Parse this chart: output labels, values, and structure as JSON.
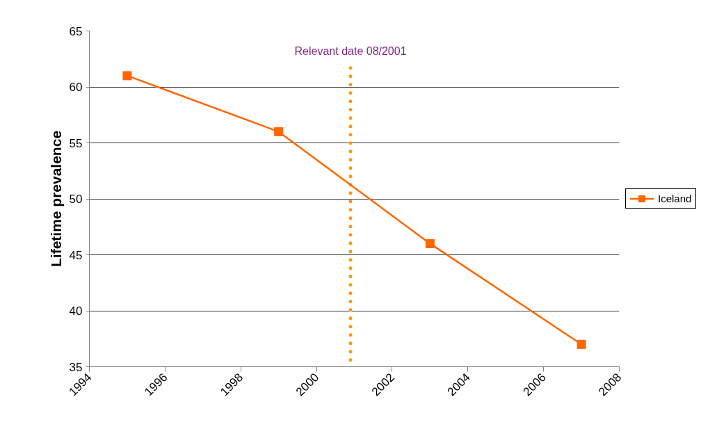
{
  "chart_data": {
    "type": "line",
    "ylabel": "Lifetime prevalence",
    "x": [
      1995,
      1999,
      2003,
      2007
    ],
    "series": [
      {
        "name": "Iceland",
        "color": "#ff6600",
        "values": [
          61,
          56,
          46,
          37
        ]
      }
    ],
    "xlim": [
      1994,
      2008
    ],
    "xticks": [
      1994,
      1996,
      1998,
      2000,
      2002,
      2004,
      2006,
      2008
    ],
    "ylim": [
      35,
      65
    ],
    "yticks": [
      35,
      40,
      45,
      50,
      55,
      60,
      65
    ],
    "grid": "y",
    "legend": "right",
    "marker": "square",
    "line_style": "solid",
    "ref_lines": [
      {
        "axis": "x",
        "value": 2000.9,
        "label": "Relevant date 08/2001",
        "color": "#ff9900",
        "line_style": "dotted"
      }
    ]
  }
}
